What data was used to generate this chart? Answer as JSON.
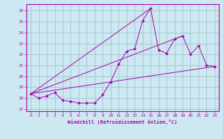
{
  "xlabel": "Windchill (Refroidissement éolien,°C)",
  "background_color": "#cce8f0",
  "line_color": "#aa00aa",
  "grid_color": "#99bbcc",
  "xlim": [
    -0.5,
    23.5
  ],
  "ylim": [
    16.8,
    26.6
  ],
  "yticks": [
    17,
    18,
    19,
    20,
    21,
    22,
    23,
    24,
    25,
    26
  ],
  "xticks": [
    0,
    1,
    2,
    3,
    4,
    5,
    6,
    7,
    8,
    9,
    10,
    11,
    12,
    13,
    14,
    15,
    16,
    17,
    18,
    19,
    20,
    21,
    22,
    23
  ],
  "main_line_x": [
    0,
    1,
    2,
    3,
    4,
    5,
    6,
    7,
    8,
    9,
    10,
    11,
    12,
    13,
    14,
    15,
    16,
    17,
    18,
    19,
    20,
    21,
    22,
    23
  ],
  "main_line_y": [
    18.4,
    18.0,
    18.2,
    18.5,
    17.8,
    17.7,
    17.55,
    17.55,
    17.55,
    18.3,
    19.5,
    21.1,
    22.3,
    22.5,
    25.1,
    26.2,
    22.4,
    22.1,
    23.4,
    23.7,
    22.0,
    22.8,
    21.0,
    20.9
  ],
  "straight_lines": [
    {
      "x": [
        0,
        23
      ],
      "y": [
        18.4,
        20.9
      ]
    },
    {
      "x": [
        0,
        15
      ],
      "y": [
        18.4,
        26.2
      ]
    },
    {
      "x": [
        0,
        19
      ],
      "y": [
        18.4,
        23.7
      ]
    }
  ]
}
